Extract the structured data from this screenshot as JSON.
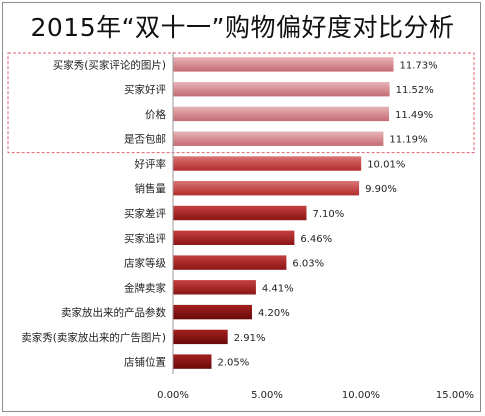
{
  "chart_data": {
    "type": "bar",
    "orientation": "horizontal",
    "title": "2015年“双十一”购物偏好度对比分析",
    "xlabel": "",
    "ylabel": "",
    "categories": [
      "买家秀(买家评论的图片)",
      "买家好评",
      "价格",
      "是否包邮",
      "好评率",
      "销售量",
      "买家差评",
      "买家追评",
      "店家等级",
      "金牌卖家",
      "卖家放出来的产品参数",
      "卖家秀(卖家放出来的广告图片)",
      "店铺位置"
    ],
    "values": [
      11.73,
      11.52,
      11.49,
      11.19,
      10.01,
      9.9,
      7.1,
      6.46,
      6.03,
      4.41,
      4.2,
      2.91,
      2.05
    ],
    "value_labels": [
      "11.73%",
      "11.52%",
      "11.49%",
      "11.19%",
      "10.01%",
      "9.90%",
      "7.10%",
      "6.46%",
      "6.03%",
      "4.41%",
      "4.20%",
      "2.91%",
      "2.05%"
    ],
    "xlim": [
      0,
      15
    ],
    "xticks": [
      0,
      5,
      10,
      15
    ],
    "xtick_labels": [
      "0.00%",
      "5.00%",
      "10.00%",
      "15.00%"
    ],
    "grid": false,
    "legend": "none",
    "highlight": {
      "categories_count": 4,
      "style": "dashed-box",
      "color": "#e06070"
    },
    "colors": {
      "highlight_top": "#e7b4b8",
      "highlight_bottom": "#c46b72",
      "mid_top": "#d97575",
      "mid_bottom": "#b32b2b",
      "low_top": "#c54040",
      "low_bottom": "#8a1414",
      "dark_top": "#a32020",
      "dark_bottom": "#6a0a0a"
    }
  }
}
